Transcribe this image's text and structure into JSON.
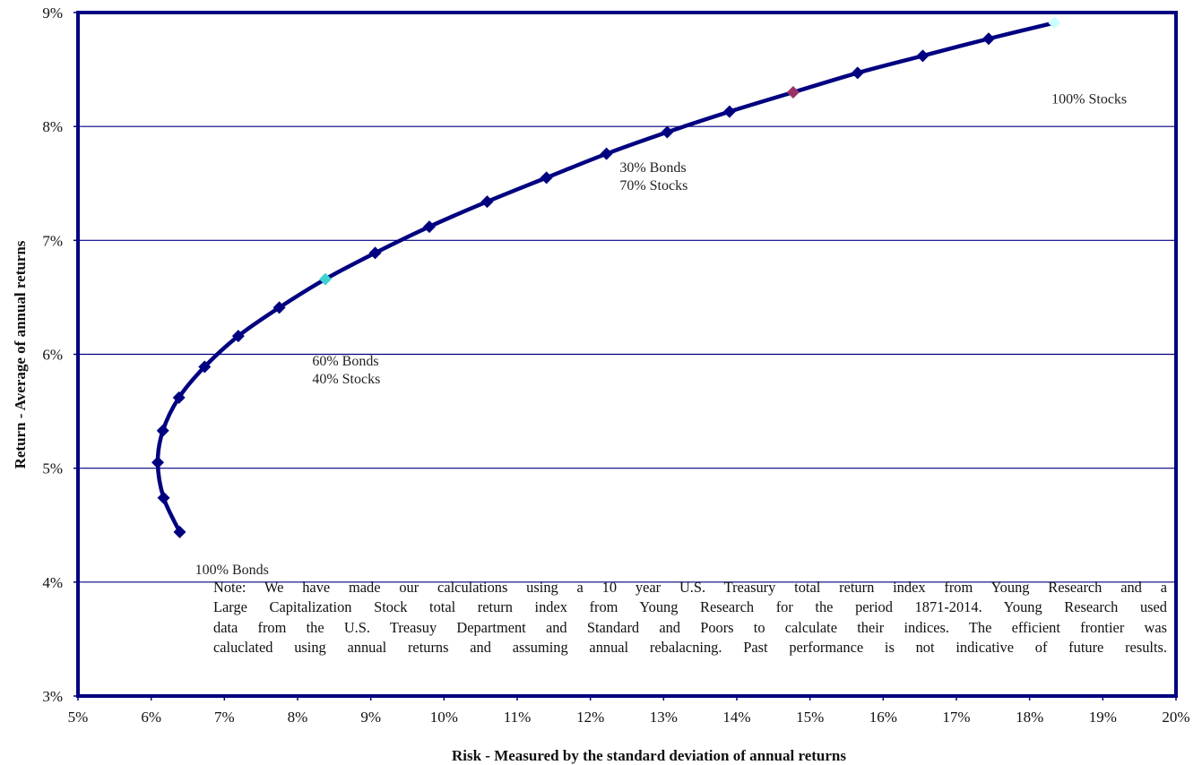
{
  "chart_data": {
    "type": "line",
    "xlabel": "Risk - Measured by the standard deviation of annual returns",
    "ylabel": "Return - Average of annual returns",
    "xlim": [
      5,
      20
    ],
    "ylim": [
      3,
      9
    ],
    "x_ticks": [
      "5%",
      "6%",
      "7%",
      "8%",
      "9%",
      "10%",
      "11%",
      "12%",
      "13%",
      "14%",
      "15%",
      "16%",
      "17%",
      "18%",
      "19%",
      "20%"
    ],
    "y_ticks": [
      "3%",
      "4%",
      "5%",
      "6%",
      "7%",
      "8%",
      "9%"
    ],
    "grid": "horizontal",
    "colors": {
      "line": "#000080",
      "frame": "#000080",
      "grid": "#000080",
      "highlight_60_40": "#3fd0d0",
      "highlight_30_70": "#993366",
      "highlight_100_stocks": "#ccffff"
    },
    "series": [
      {
        "x": [
          6.39,
          6.17,
          6.09,
          6.16,
          6.38,
          6.73,
          7.19,
          7.75,
          8.38,
          9.06,
          9.8,
          10.59,
          11.4,
          12.22,
          13.05,
          13.9,
          14.77,
          15.65,
          16.54,
          17.44,
          18.34
        ],
        "y": [
          4.44,
          4.74,
          5.05,
          5.33,
          5.62,
          5.89,
          6.16,
          6.41,
          6.66,
          6.89,
          7.12,
          7.34,
          7.55,
          7.76,
          7.95,
          8.13,
          8.3,
          8.47,
          8.62,
          8.77,
          8.91
        ]
      }
    ],
    "highlights": [
      {
        "index": 8,
        "color_key": "highlight_60_40"
      },
      {
        "index": 16,
        "color_key": "highlight_30_70"
      },
      {
        "index": 20,
        "color_key": "highlight_100_stocks"
      }
    ],
    "annotations": [
      {
        "lines": [
          "100% Stocks"
        ],
        "x": 18.3,
        "y": 8.2
      },
      {
        "lines": [
          "30% Bonds",
          "70% Stocks"
        ],
        "x": 12.4,
        "y": 7.6
      },
      {
        "lines": [
          "60% Bonds",
          "40% Stocks"
        ],
        "x": 8.2,
        "y": 5.9
      },
      {
        "lines": [
          "100% Bonds"
        ],
        "x": 6.6,
        "y": 4.07
      }
    ]
  },
  "note_lines": [
    "Note:  We have made our calculations  using  a 10 year U.S. Treasury  total return index from Young  Research and a",
    "Large Capitalization  Stock total return index from Young Research for the period 1871-2014. Young Research used",
    "data from the U.S. Treasuy Department and Standard and Poors to calculate  their indices.  The efficient  frontier  was",
    "caluclated  using  annual returns and assuming  annual rebalacning.  Past performance  is not indicative  of future results."
  ]
}
